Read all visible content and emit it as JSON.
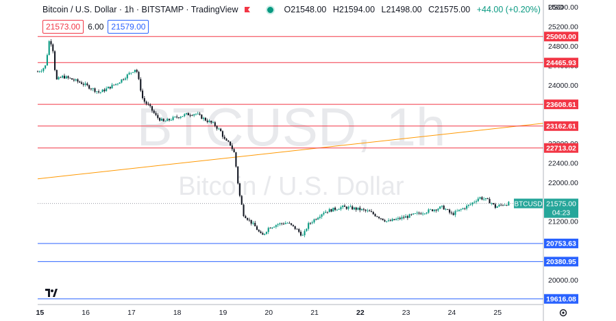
{
  "header": {
    "title": "Bitcoin / U.S. Dollar · 1h · BITSTAMP · TradingView",
    "ohlc": {
      "o": "O21548.00",
      "h": "H21594.00",
      "l": "L21498.00",
      "c": "C21575.00",
      "chg": "+44.00 (+0.20%)"
    },
    "sell_price": "21573.00",
    "spread": "6.00",
    "buy_price": "21579.00"
  },
  "watermark": {
    "symbol": "BTCUSD, 1h",
    "name": "Bitcoin / U.S. Dollar"
  },
  "colors": {
    "up": "#089981",
    "down": "#131722",
    "resistance": "#f23645",
    "support": "#2962ff",
    "trendline": "#ff9800",
    "price_label": "#26a69a"
  },
  "chart_data": {
    "type": "candlestick",
    "symbol": "BTCUSD",
    "currency_label": "USD",
    "ylim": [
      19500,
      25750
    ],
    "y_ticks": [
      20000,
      20400,
      20800,
      21200,
      21600,
      22000,
      22400,
      22800,
      23200,
      23600,
      24000,
      24400,
      24800,
      25200,
      25600
    ],
    "x_ticks": [
      "15",
      "16",
      "17",
      "18",
      "19",
      "20",
      "21",
      "22",
      "23",
      "24",
      "25"
    ],
    "x_tick_positions": [
      15,
      16,
      17,
      18,
      19,
      20,
      21,
      22,
      23,
      24,
      25
    ],
    "xlim": [
      14.95,
      26.0
    ],
    "resistance_levels": [
      25000.0,
      24465.93,
      23608.61,
      23162.61,
      22713.02
    ],
    "resistance_labels": [
      "25000.00",
      "24465.93",
      "23608.61",
      "23162.61",
      "22713.02"
    ],
    "support_levels": [
      20753.63,
      20380.95,
      19616.08
    ],
    "support_labels": [
      "20753.63",
      "20380.95",
      "19616.08"
    ],
    "trendline": {
      "x": [
        14.95,
        26.0
      ],
      "y": [
        22080,
        23220
      ]
    },
    "last_price": 21575.0,
    "last_price_label": "21575.00",
    "countdown": "04:23",
    "price_line_label": "BTCUSD",
    "price_path": {
      "x": [
        14.95,
        15.05,
        15.12,
        15.2,
        15.27,
        15.35,
        15.5,
        15.7,
        15.9,
        16.1,
        16.3,
        16.5,
        16.7,
        16.9,
        17.1,
        17.25,
        17.4,
        17.55,
        17.7,
        17.85,
        18.0,
        18.2,
        18.4,
        18.6,
        18.8,
        18.95,
        19.05,
        19.15,
        19.25,
        19.35,
        19.45,
        19.55,
        19.7,
        19.85,
        20.0,
        20.2,
        20.4,
        20.6,
        20.75,
        20.85,
        21.0,
        21.2,
        21.4,
        21.6,
        21.8,
        22.0,
        22.2,
        22.4,
        22.6,
        22.8,
        23.0,
        23.2,
        23.4,
        23.6,
        23.8,
        24.0,
        24.2,
        24.4,
        24.6,
        24.75,
        24.85,
        24.95,
        25.1,
        25.25
      ],
      "y": [
        24280,
        24330,
        24400,
        24900,
        24850,
        24100,
        24180,
        24120,
        24050,
        23950,
        23850,
        23950,
        24050,
        24200,
        24350,
        23700,
        23550,
        23350,
        23250,
        23300,
        23350,
        23400,
        23420,
        23300,
        23200,
        23050,
        22850,
        22800,
        22600,
        21800,
        21350,
        21250,
        21100,
        20900,
        21080,
        21150,
        21180,
        21050,
        20900,
        21130,
        21250,
        21400,
        21450,
        21500,
        21480,
        21450,
        21400,
        21300,
        21200,
        21250,
        21300,
        21350,
        21400,
        21450,
        21500,
        21350,
        21450,
        21550,
        21700,
        21650,
        21600,
        21500,
        21550,
        21575
      ]
    }
  }
}
